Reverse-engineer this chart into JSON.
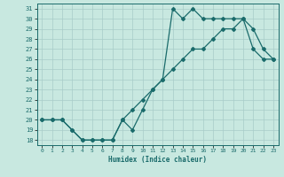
{
  "xlabel": "Humidex (Indice chaleur)",
  "xlim": [
    -0.5,
    23.5
  ],
  "ylim": [
    17.5,
    31.5
  ],
  "yticks": [
    18,
    19,
    20,
    21,
    22,
    23,
    24,
    25,
    26,
    27,
    28,
    29,
    30,
    31
  ],
  "xticks": [
    0,
    1,
    2,
    3,
    4,
    5,
    6,
    7,
    8,
    9,
    10,
    11,
    12,
    13,
    14,
    15,
    16,
    17,
    18,
    19,
    20,
    21,
    22,
    23
  ],
  "bg_color": "#c8e8e0",
  "grid_color": "#a8ccc8",
  "line_color": "#1a6b6b",
  "curve1_x": [
    0,
    1,
    2,
    3,
    4,
    5,
    6,
    7,
    8,
    9,
    10,
    11,
    12,
    13,
    14,
    15,
    16,
    17,
    18,
    19,
    20,
    21,
    22,
    23
  ],
  "curve1_y": [
    20,
    20,
    20,
    19,
    18,
    18,
    18,
    18,
    20,
    19,
    21,
    23,
    24,
    31,
    30,
    31,
    30,
    30,
    30,
    30,
    30,
    29,
    27,
    26
  ],
  "curve2_x": [
    0,
    1,
    2,
    3,
    4,
    5,
    6,
    7,
    8,
    9,
    10,
    11,
    12,
    13,
    14,
    15,
    16,
    17,
    18,
    19,
    20,
    21,
    22,
    23
  ],
  "curve2_y": [
    20,
    20,
    20,
    19,
    18,
    18,
    18,
    18,
    20,
    21,
    22,
    23,
    24,
    25,
    26,
    27,
    27,
    28,
    29,
    29,
    30,
    27,
    26,
    26
  ]
}
